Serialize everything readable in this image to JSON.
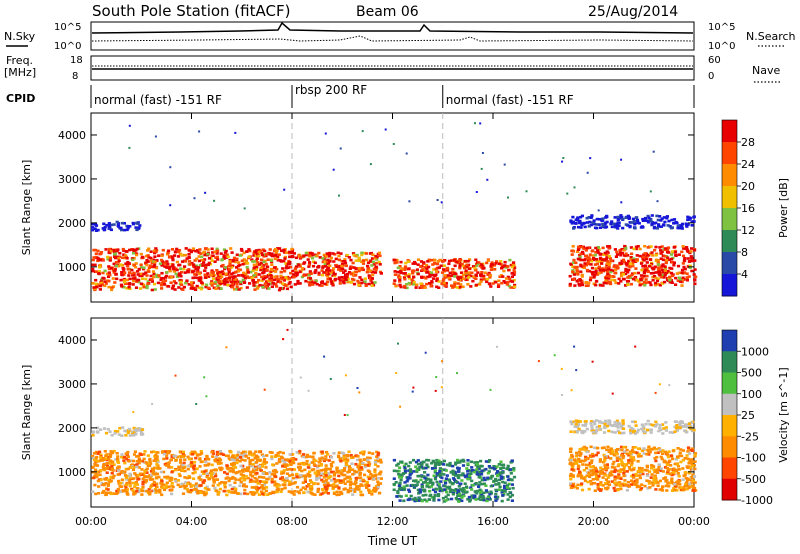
{
  "header": {
    "station": "South Pole Station (fitACF)",
    "beam": "Beam 06",
    "date": "25/Aug/2014"
  },
  "params_panel": {
    "nsky_label": "N.Sky",
    "nsky_ticks": [
      "10^5",
      "10^0"
    ],
    "nsearch_label": "N.Search",
    "nsearch_ticks": [
      "10^5",
      "10^0"
    ],
    "freq_label_line1": "Freq.",
    "freq_label_line2": "[MHz]",
    "freq_ticks": [
      "18",
      "8"
    ],
    "nave_label": "Nave",
    "nave_ticks": [
      "60",
      "0"
    ],
    "cpid_label": "CPID",
    "cpid_segments": [
      {
        "label": "normal (fast) -151 RF",
        "start_h": 0,
        "end_h": 8
      },
      {
        "label": "rbsp 200 RF",
        "start_h": 8,
        "end_h": 14
      },
      {
        "label": "normal (fast) -151 RF",
        "start_h": 14,
        "end_h": 24
      }
    ]
  },
  "chart_data": [
    {
      "type": "heatmap",
      "quantity": "Power",
      "ylabel": "Slant Range [km]",
      "xlabel": "",
      "ylim": [
        200,
        4500
      ],
      "xlim_h": [
        0,
        24
      ],
      "yticks": [
        1000,
        2000,
        3000,
        4000
      ],
      "colorbar": {
        "label": "Power [dB]",
        "ticks": [
          "4",
          "8",
          "12",
          "16",
          "20",
          "24",
          "28"
        ],
        "colors": [
          "#1616d8",
          "#2a4aa8",
          "#2e8b57",
          "#7fc241",
          "#f0c000",
          "#ff8c00",
          "#ff4500",
          "#e80000"
        ]
      },
      "scatter_bands": [
        {
          "start_h": 0.0,
          "end_h": 2.0,
          "low_km": 1850,
          "high_km": 2050,
          "value": "4-8 dB"
        },
        {
          "start_h": 0.0,
          "end_h": 8.0,
          "low_km": 500,
          "high_km": 1450,
          "value": "24-30 dB"
        },
        {
          "start_h": 8.0,
          "end_h": 11.5,
          "low_km": 600,
          "high_km": 1350,
          "value": "20-30 dB"
        },
        {
          "start_h": 12.0,
          "end_h": 16.8,
          "low_km": 550,
          "high_km": 1200,
          "value": "16-28 dB"
        },
        {
          "start_h": 19.0,
          "end_h": 24.0,
          "low_km": 1900,
          "high_km": 2200,
          "value": "4-8 dB"
        },
        {
          "start_h": 19.0,
          "end_h": 24.0,
          "low_km": 600,
          "high_km": 1500,
          "value": "16-30 dB"
        }
      ]
    },
    {
      "type": "heatmap",
      "quantity": "Velocity",
      "ylabel": "Slant Range [km]",
      "xlabel": "Time UT",
      "ylim": [
        200,
        4500
      ],
      "xlim_h": [
        0,
        24
      ],
      "yticks": [
        1000,
        2000,
        3000,
        4000
      ],
      "xticks": [
        "00:00",
        "04:00",
        "08:00",
        "12:00",
        "16:00",
        "20:00",
        "00:00"
      ],
      "colorbar": {
        "label": "Velocity [m s^-1]",
        "ticks": [
          "1000",
          "500",
          "100",
          "25",
          "-25",
          "-100",
          "-500",
          "-1000"
        ],
        "colors": [
          "#1f3fb0",
          "#2e8b57",
          "#4fbf3f",
          "#c0c0c0",
          "#ffb000",
          "#ff8c00",
          "#ff4500",
          "#e00000"
        ]
      },
      "scatter_bands": [
        {
          "start_h": 0.0,
          "end_h": 2.0,
          "low_km": 1850,
          "high_km": 2050,
          "value": "~0 m/s"
        },
        {
          "start_h": 0.0,
          "end_h": 11.5,
          "low_km": 500,
          "high_km": 1500,
          "value": "-100 to -500 m/s"
        },
        {
          "start_h": 12.0,
          "end_h": 16.8,
          "low_km": 350,
          "high_km": 1300,
          "value": "100 to 500 m/s"
        },
        {
          "start_h": 19.0,
          "end_h": 24.0,
          "low_km": 1900,
          "high_km": 2200,
          "value": "~0 m/s"
        },
        {
          "start_h": 19.0,
          "end_h": 24.0,
          "low_km": 600,
          "high_km": 1600,
          "value": "-100 to -500 m/s"
        }
      ]
    }
  ]
}
